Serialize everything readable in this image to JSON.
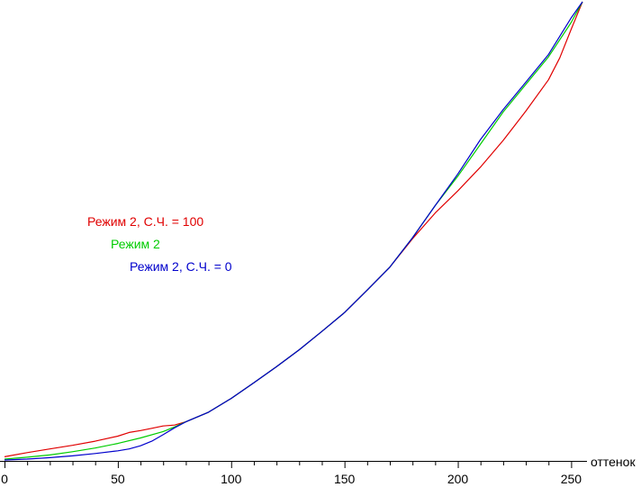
{
  "chart_data": {
    "type": "line",
    "xlabel": "оттенок",
    "ylabel": "",
    "xlim": [
      0,
      255
    ],
    "ylim": [
      0,
      1
    ],
    "grid": false,
    "legend_position": "left-middle",
    "x_ticks": [
      0,
      50,
      100,
      150,
      200,
      250
    ],
    "x_tick_labels": [
      "0",
      "50",
      "100",
      "150",
      "200",
      "250"
    ],
    "series": [
      {
        "name": "Режим 2, С.Ч. = 100",
        "color": "#e00000",
        "x": [
          0,
          10,
          20,
          30,
          40,
          50,
          55,
          60,
          65,
          70,
          75,
          80,
          90,
          100,
          110,
          120,
          130,
          140,
          150,
          160,
          170,
          180,
          190,
          200,
          210,
          220,
          230,
          240,
          245,
          250,
          255
        ],
        "y": [
          0.009,
          0.018,
          0.026,
          0.034,
          0.043,
          0.054,
          0.062,
          0.066,
          0.071,
          0.076,
          0.078,
          0.085,
          0.106,
          0.136,
          0.17,
          0.205,
          0.242,
          0.282,
          0.323,
          0.372,
          0.422,
          0.484,
          0.54,
          0.588,
          0.64,
          0.698,
          0.762,
          0.83,
          0.878,
          0.94,
          1.0
        ]
      },
      {
        "name": "Режим 2",
        "color": "#00cc00",
        "x": [
          0,
          10,
          20,
          30,
          40,
          50,
          60,
          70,
          75,
          80,
          90,
          100,
          110,
          120,
          130,
          140,
          150,
          160,
          170,
          180,
          190,
          200,
          210,
          220,
          230,
          240,
          250,
          255
        ],
        "y": [
          0.004,
          0.008,
          0.013,
          0.02,
          0.028,
          0.038,
          0.05,
          0.064,
          0.074,
          0.085,
          0.106,
          0.136,
          0.17,
          0.205,
          0.242,
          0.282,
          0.323,
          0.372,
          0.422,
          0.486,
          0.556,
          0.62,
          0.69,
          0.76,
          0.82,
          0.88,
          0.955,
          1.0
        ]
      },
      {
        "name": "Режим 2, С.Ч. = 0",
        "color": "#0000cc",
        "x": [
          0,
          10,
          20,
          30,
          40,
          50,
          55,
          60,
          65,
          70,
          75,
          80,
          90,
          100,
          110,
          120,
          130,
          140,
          150,
          160,
          170,
          180,
          190,
          200,
          210,
          220,
          230,
          240,
          250,
          255
        ],
        "y": [
          0.002,
          0.004,
          0.007,
          0.011,
          0.016,
          0.022,
          0.026,
          0.033,
          0.043,
          0.057,
          0.072,
          0.085,
          0.106,
          0.136,
          0.17,
          0.205,
          0.242,
          0.282,
          0.323,
          0.372,
          0.422,
          0.486,
          0.556,
          0.625,
          0.7,
          0.765,
          0.825,
          0.885,
          0.965,
          1.0
        ]
      }
    ]
  }
}
